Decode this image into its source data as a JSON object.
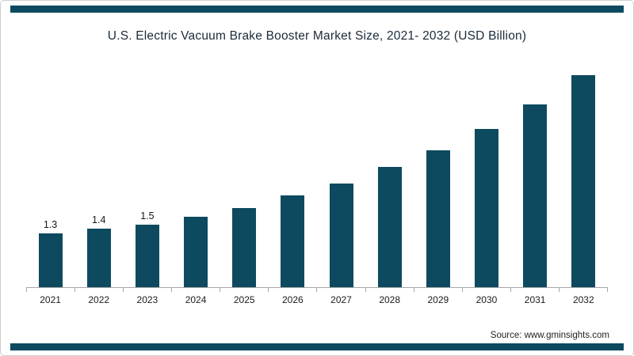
{
  "page": {
    "source": "Source: www.gminsights.com"
  },
  "colors": {
    "bar": "#0d4a5f",
    "stripe": "#0d4a5f",
    "axis": "#a6a6a6"
  },
  "chart_data": {
    "type": "bar",
    "title": "U.S. Electric Vacuum Brake Booster Market Size, 2021- 2032 (USD Billion)",
    "categories": [
      "2021",
      "2022",
      "2023",
      "2024",
      "2025",
      "2026",
      "2027",
      "2028",
      "2029",
      "2030",
      "2031",
      "2032"
    ],
    "values": [
      1.3,
      1.4,
      1.5,
      1.7,
      1.9,
      2.2,
      2.5,
      2.9,
      3.3,
      3.8,
      4.4,
      5.1
    ],
    "data_labels": [
      "1.3",
      "1.4",
      "1.5",
      null,
      null,
      null,
      null,
      null,
      null,
      null,
      null,
      null
    ],
    "xlabel": "",
    "ylabel": "",
    "ylim": [
      0,
      5.5
    ],
    "y_axis_visible": false,
    "grid": false,
    "legend_position": "none"
  }
}
